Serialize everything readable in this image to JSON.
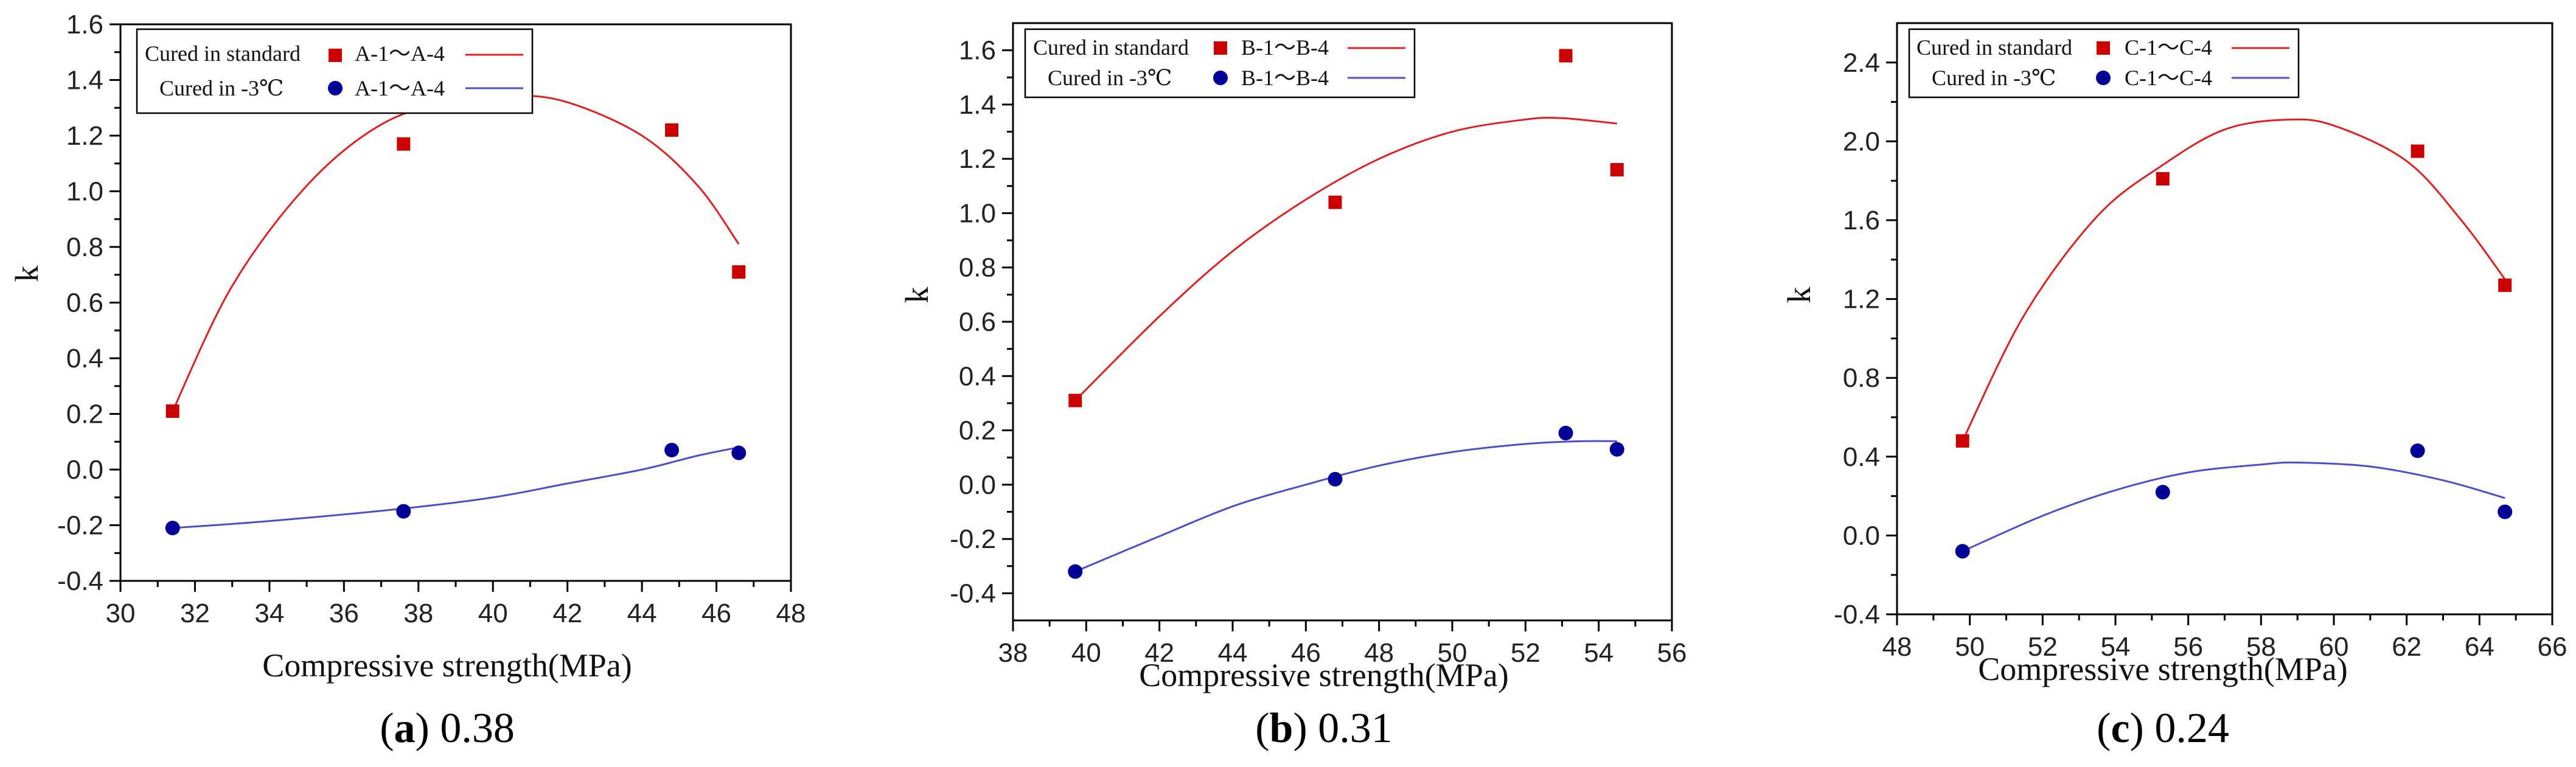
{
  "chart_data": [
    {
      "type": "scatter",
      "caption_letter": "a",
      "caption_value": "0.38",
      "xlabel": "Compressive strength(MPa)",
      "ylabel": "k",
      "xlim": [
        30,
        48
      ],
      "ylim": [
        -0.4,
        1.6
      ],
      "x_ticks": [
        30,
        32,
        34,
        36,
        38,
        40,
        42,
        44,
        46,
        48
      ],
      "y_ticks": [
        -0.4,
        -0.2,
        0.0,
        0.2,
        0.4,
        0.6,
        0.8,
        1.0,
        1.2,
        1.4,
        1.6
      ],
      "y_decimals": 1,
      "series": [
        {
          "key": "standard",
          "condition": "Cured in standard",
          "name": "A-1～A-4",
          "marker": "square",
          "color": "#cc0000",
          "points": [
            [
              31.4,
              0.21
            ],
            [
              37.6,
              1.17
            ],
            [
              44.8,
              1.22
            ],
            [
              46.6,
              0.71
            ]
          ],
          "fit": [
            [
              31.4,
              0.21
            ],
            [
              33,
              0.66
            ],
            [
              35,
              1.02
            ],
            [
              37,
              1.24
            ],
            [
              39,
              1.33
            ],
            [
              40.5,
              1.345
            ],
            [
              42,
              1.32
            ],
            [
              44,
              1.2
            ],
            [
              45.5,
              1.02
            ],
            [
              46.6,
              0.81
            ]
          ]
        },
        {
          "key": "cold",
          "condition": "Cured in -3℃",
          "name": "A-1～A-4",
          "marker": "circle",
          "color": "#000099",
          "line_color": "#4d4dcc",
          "points": [
            [
              31.4,
              -0.21
            ],
            [
              37.6,
              -0.15
            ],
            [
              44.8,
              0.07
            ],
            [
              46.6,
              0.06
            ]
          ],
          "fit": [
            [
              31.4,
              -0.21
            ],
            [
              34,
              -0.185
            ],
            [
              37.6,
              -0.14
            ],
            [
              40,
              -0.1
            ],
            [
              42,
              -0.05
            ],
            [
              44,
              0.0
            ],
            [
              45.5,
              0.05
            ],
            [
              46.6,
              0.08
            ]
          ]
        }
      ]
    },
    {
      "type": "scatter",
      "caption_letter": "b",
      "caption_value": "0.31",
      "xlabel": "Compressive strength(MPa)",
      "ylabel": "k",
      "xlim": [
        38,
        56
      ],
      "ylim": [
        -0.5,
        1.7
      ],
      "x_ticks": [
        38,
        40,
        42,
        44,
        46,
        48,
        50,
        52,
        54,
        56
      ],
      "y_ticks": [
        -0.4,
        -0.2,
        0.0,
        0.2,
        0.4,
        0.6,
        0.8,
        1.0,
        1.2,
        1.4,
        1.6
      ],
      "y_decimals": 1,
      "series": [
        {
          "key": "standard",
          "condition": "Cured in standard",
          "name": "B-1～B-4",
          "marker": "square",
          "color": "#cc0000",
          "points": [
            [
              39.7,
              0.31
            ],
            [
              46.8,
              1.04
            ],
            [
              53.1,
              1.58
            ],
            [
              54.5,
              1.16
            ]
          ],
          "fit": [
            [
              39.7,
              0.31
            ],
            [
              42,
              0.62
            ],
            [
              44,
              0.86
            ],
            [
              46,
              1.05
            ],
            [
              48,
              1.2
            ],
            [
              50,
              1.3
            ],
            [
              52,
              1.345
            ],
            [
              53,
              1.35
            ],
            [
              54.5,
              1.33
            ]
          ]
        },
        {
          "key": "cold",
          "condition": "Cured in -3℃",
          "name": "B-1～B-4",
          "marker": "circle",
          "color": "#000099",
          "line_color": "#4d4dcc",
          "points": [
            [
              39.7,
              -0.32
            ],
            [
              46.8,
              0.02
            ],
            [
              53.1,
              0.19
            ],
            [
              54.5,
              0.13
            ]
          ],
          "fit": [
            [
              39.7,
              -0.32
            ],
            [
              42,
              -0.19
            ],
            [
              44,
              -0.08
            ],
            [
              46,
              0.0
            ],
            [
              48,
              0.07
            ],
            [
              50,
              0.12
            ],
            [
              52,
              0.15
            ],
            [
              53.5,
              0.16
            ],
            [
              54.5,
              0.16
            ]
          ]
        }
      ]
    },
    {
      "type": "scatter",
      "caption_letter": "c",
      "caption_value": "0.24",
      "xlabel": "Compressive strength(MPa)",
      "ylabel": "k",
      "xlim": [
        48,
        66
      ],
      "ylim": [
        -0.4,
        2.6
      ],
      "x_ticks": [
        48,
        50,
        52,
        54,
        56,
        58,
        60,
        62,
        64,
        66
      ],
      "y_ticks": [
        -0.4,
        0.0,
        0.4,
        0.8,
        1.2,
        1.6,
        2.0,
        2.4
      ],
      "y_decimals": 1,
      "series": [
        {
          "key": "standard",
          "condition": "Cured in standard",
          "name": "C-1～C-4",
          "marker": "square",
          "color": "#cc0000",
          "points": [
            [
              49.8,
              0.48
            ],
            [
              55.3,
              1.81
            ],
            [
              62.3,
              1.95
            ],
            [
              64.7,
              1.27
            ]
          ],
          "fit": [
            [
              49.8,
              0.48
            ],
            [
              51.5,
              1.12
            ],
            [
              53.5,
              1.62
            ],
            [
              55.3,
              1.88
            ],
            [
              57,
              2.06
            ],
            [
              58.7,
              2.11
            ],
            [
              60,
              2.08
            ],
            [
              62,
              1.9
            ],
            [
              63.5,
              1.6
            ],
            [
              64.7,
              1.3
            ]
          ]
        },
        {
          "key": "cold",
          "condition": "Cured in -3℃",
          "name": "C-1～C-4",
          "marker": "circle",
          "color": "#000099",
          "line_color": "#4d4dcc",
          "points": [
            [
              49.8,
              -0.08
            ],
            [
              55.3,
              0.22
            ],
            [
              62.3,
              0.43
            ],
            [
              64.7,
              0.12
            ]
          ],
          "fit": [
            [
              49.8,
              -0.08
            ],
            [
              52,
              0.1
            ],
            [
              54,
              0.23
            ],
            [
              56,
              0.32
            ],
            [
              58,
              0.36
            ],
            [
              59,
              0.37
            ],
            [
              61,
              0.35
            ],
            [
              63,
              0.28
            ],
            [
              64.7,
              0.19
            ]
          ]
        }
      ]
    }
  ]
}
